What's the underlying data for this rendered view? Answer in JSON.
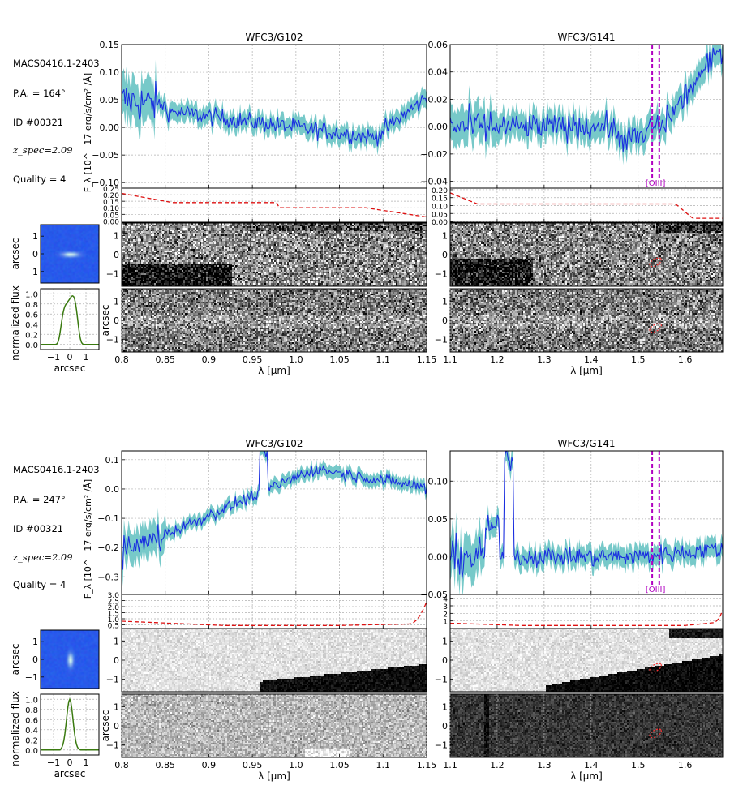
{
  "panels": [
    {
      "info": {
        "cluster": "MACS0416.1-2403",
        "pa": "P.A. = 164°",
        "id": "ID #00321",
        "zspec": "z_spec=2.09",
        "quality": "Quality = 4"
      },
      "g102": {
        "title": "WFC3/G102",
        "xlim": [
          0.8,
          1.15
        ],
        "xticks": [
          "0.8",
          "0.85",
          "0.9",
          "0.95",
          "1.0",
          "1.05",
          "1.1",
          "1.15"
        ],
        "ylim": [
          -0.11,
          0.15
        ],
        "yticks": [
          "0.15",
          "0.10",
          "0.05",
          "0.00",
          "−0.05",
          "−0.10"
        ],
        "err_ylim": [
          -0.01,
          0.25
        ],
        "err_yticks": [
          "0.25",
          "0.20",
          "0.15",
          "0.10",
          "0.05",
          "0.00"
        ]
      },
      "g141": {
        "title": "WFC3/G141",
        "xlim": [
          1.1,
          1.68
        ],
        "xticks": [
          "1.1",
          "1.2",
          "1.3",
          "1.4",
          "1.5",
          "1.6"
        ],
        "ylim": [
          -0.045,
          0.06
        ],
        "yticks": [
          "0.06",
          "0.04",
          "0.02",
          "0.00",
          "−0.02",
          "−0.04"
        ],
        "err_ylim": [
          -0.005,
          0.21
        ],
        "err_yticks": [
          "0.20",
          "0.15",
          "0.10",
          "0.05",
          "0.00"
        ],
        "line_label": "[OIII]",
        "line_x": [
          1.53,
          1.545
        ]
      },
      "ylabel": "F_λ [10^−17 erg/s/cm² /Å]",
      "xlabel": "λ [μm]",
      "stamp_ylabel": "arcsec",
      "stamp_yticks": [
        "1",
        "0",
        "−1"
      ],
      "profile_ylabel": "normalized flux",
      "profile_yticks": [
        "1.0",
        "0.8",
        "0.6",
        "0.4",
        "0.2",
        "0.0"
      ],
      "profile_xticks": [
        "−1",
        "0",
        "1"
      ],
      "profile_xlabel": "arcsec"
    },
    {
      "info": {
        "cluster": "MACS0416.1-2403",
        "pa": "P.A. = 247°",
        "id": "ID #00321",
        "zspec": "z_spec=2.09",
        "quality": "Quality = 4"
      },
      "g102": {
        "title": "WFC3/G102",
        "xlim": [
          0.8,
          1.15
        ],
        "xticks": [
          "0.8",
          "0.85",
          "0.9",
          "0.95",
          "1.0",
          "1.05",
          "1.1",
          "1.15"
        ],
        "ylim": [
          -0.36,
          0.13
        ],
        "yticks": [
          "0.1",
          "0.0",
          "−0.1",
          "−0.2",
          "−0.3"
        ],
        "err_ylim": [
          0.2,
          3.0
        ],
        "err_yticks": [
          "3.0",
          "2.5",
          "2.0",
          "1.5",
          "1.0",
          "0.5"
        ]
      },
      "g141": {
        "title": "WFC3/G141",
        "xlim": [
          1.1,
          1.68
        ],
        "xticks": [
          "1.1",
          "1.2",
          "1.3",
          "1.4",
          "1.5",
          "1.6"
        ],
        "ylim": [
          -0.05,
          0.14
        ],
        "yticks": [
          "0.10",
          "0.05",
          "0.00",
          "−0.05"
        ],
        "err_ylim": [
          0.0,
          4.5
        ],
        "err_yticks": [
          "4",
          "3",
          "2",
          "1"
        ],
        "line_label": "[OIII]",
        "line_x": [
          1.53,
          1.545
        ]
      },
      "ylabel": "F_λ [10^−17 erg/s/cm² /Å]",
      "xlabel": "λ [μm]",
      "stamp_ylabel": "arcsec",
      "stamp_yticks": [
        "1",
        "0",
        "−1"
      ],
      "profile_ylabel": "normalized flux",
      "profile_yticks": [
        "1.0",
        "0.8",
        "0.6",
        "0.4",
        "0.2",
        "0.0"
      ],
      "profile_xticks": [
        "−1",
        "0",
        "1"
      ],
      "profile_xlabel": "arcsec"
    }
  ],
  "colors": {
    "spectrum": "#1a2ee0",
    "error_band": "#5fbfbf",
    "noise_curve": "#dd1111",
    "line_marker": "#b000c0",
    "profile": "#3a7a10",
    "stamp_bg": "#2a5cf0"
  }
}
